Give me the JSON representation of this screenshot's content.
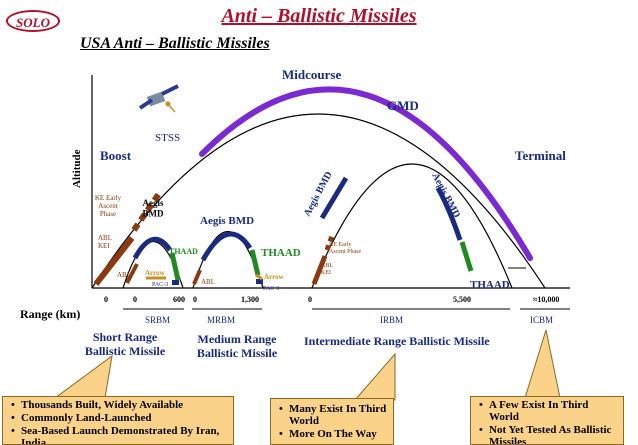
{
  "logo": {
    "text": "SOLO"
  },
  "header": {
    "title": "Anti – Ballistic Missiles",
    "subtitle": "USA Anti – Ballistic Missiles"
  },
  "diagram": {
    "axes": {
      "y_label": "Altitude",
      "x_label": "Range (km)"
    },
    "phases": {
      "boost": "Boost",
      "midcourse": "Midcourse",
      "terminal": "Terminal"
    },
    "systems": {
      "stss": "STSS",
      "gmd": "GMD",
      "aegis_short": "Aegis\nBMD",
      "aegis_medium": "Aegis BMD",
      "thaad_short": "THAAD",
      "thaad_medium": "THAAD",
      "thaad_long": "THAAD",
      "aegis_irbm_left": "Aegis BMD",
      "aegis_irbm_right": "Aegis BMD",
      "ke_early_left": "KE Early\nAscent\nPhase",
      "abl_kei_left": "ABL\nKEI",
      "ke_early_irbm": "KE Early\nAscent Phase",
      "abl_kei_irbm": "ABL\nKEI",
      "abl_short": "ABL",
      "abl_medium": "ABL",
      "arrow_short": "Arrow",
      "arrow_medium": "Arrow",
      "pac3_short": "PAC-3",
      "pac3_medium": "PAC-3"
    },
    "range_ticks": [
      "0",
      "0",
      "600",
      "0",
      "1,300",
      "0",
      "5,500",
      "≈10,000"
    ],
    "classes": {
      "srbm": "SRBM",
      "mrbm": "MRBM",
      "irbm": "IRBM",
      "icbm": "ICBM"
    },
    "class_names": {
      "short": "Short Range\nBallistic Missile",
      "medium": "Medium Range\nBallistic Missile",
      "intermediate": "Intermediate Range Ballistic Missile"
    },
    "colors": {
      "title": "#b0102a",
      "navy": "#1a2a80",
      "gmd": "#7a2ad0",
      "thaad": "#1f8a1f",
      "abl": "#8b3a0f",
      "callout": "#fbd28a",
      "arrow": "#c89020"
    }
  },
  "callouts": {
    "short": [
      "Thousands Built, Widely Available",
      "Commonly Land-Launched",
      "Sea-Based Launch Demonstrated By Iran, India"
    ],
    "intermediate": [
      "Many Exist In Third World",
      "More On The Way"
    ],
    "icbm": [
      "A Few Exist In Third World",
      "Not Yet Tested As Ballistic Missiles"
    ]
  }
}
